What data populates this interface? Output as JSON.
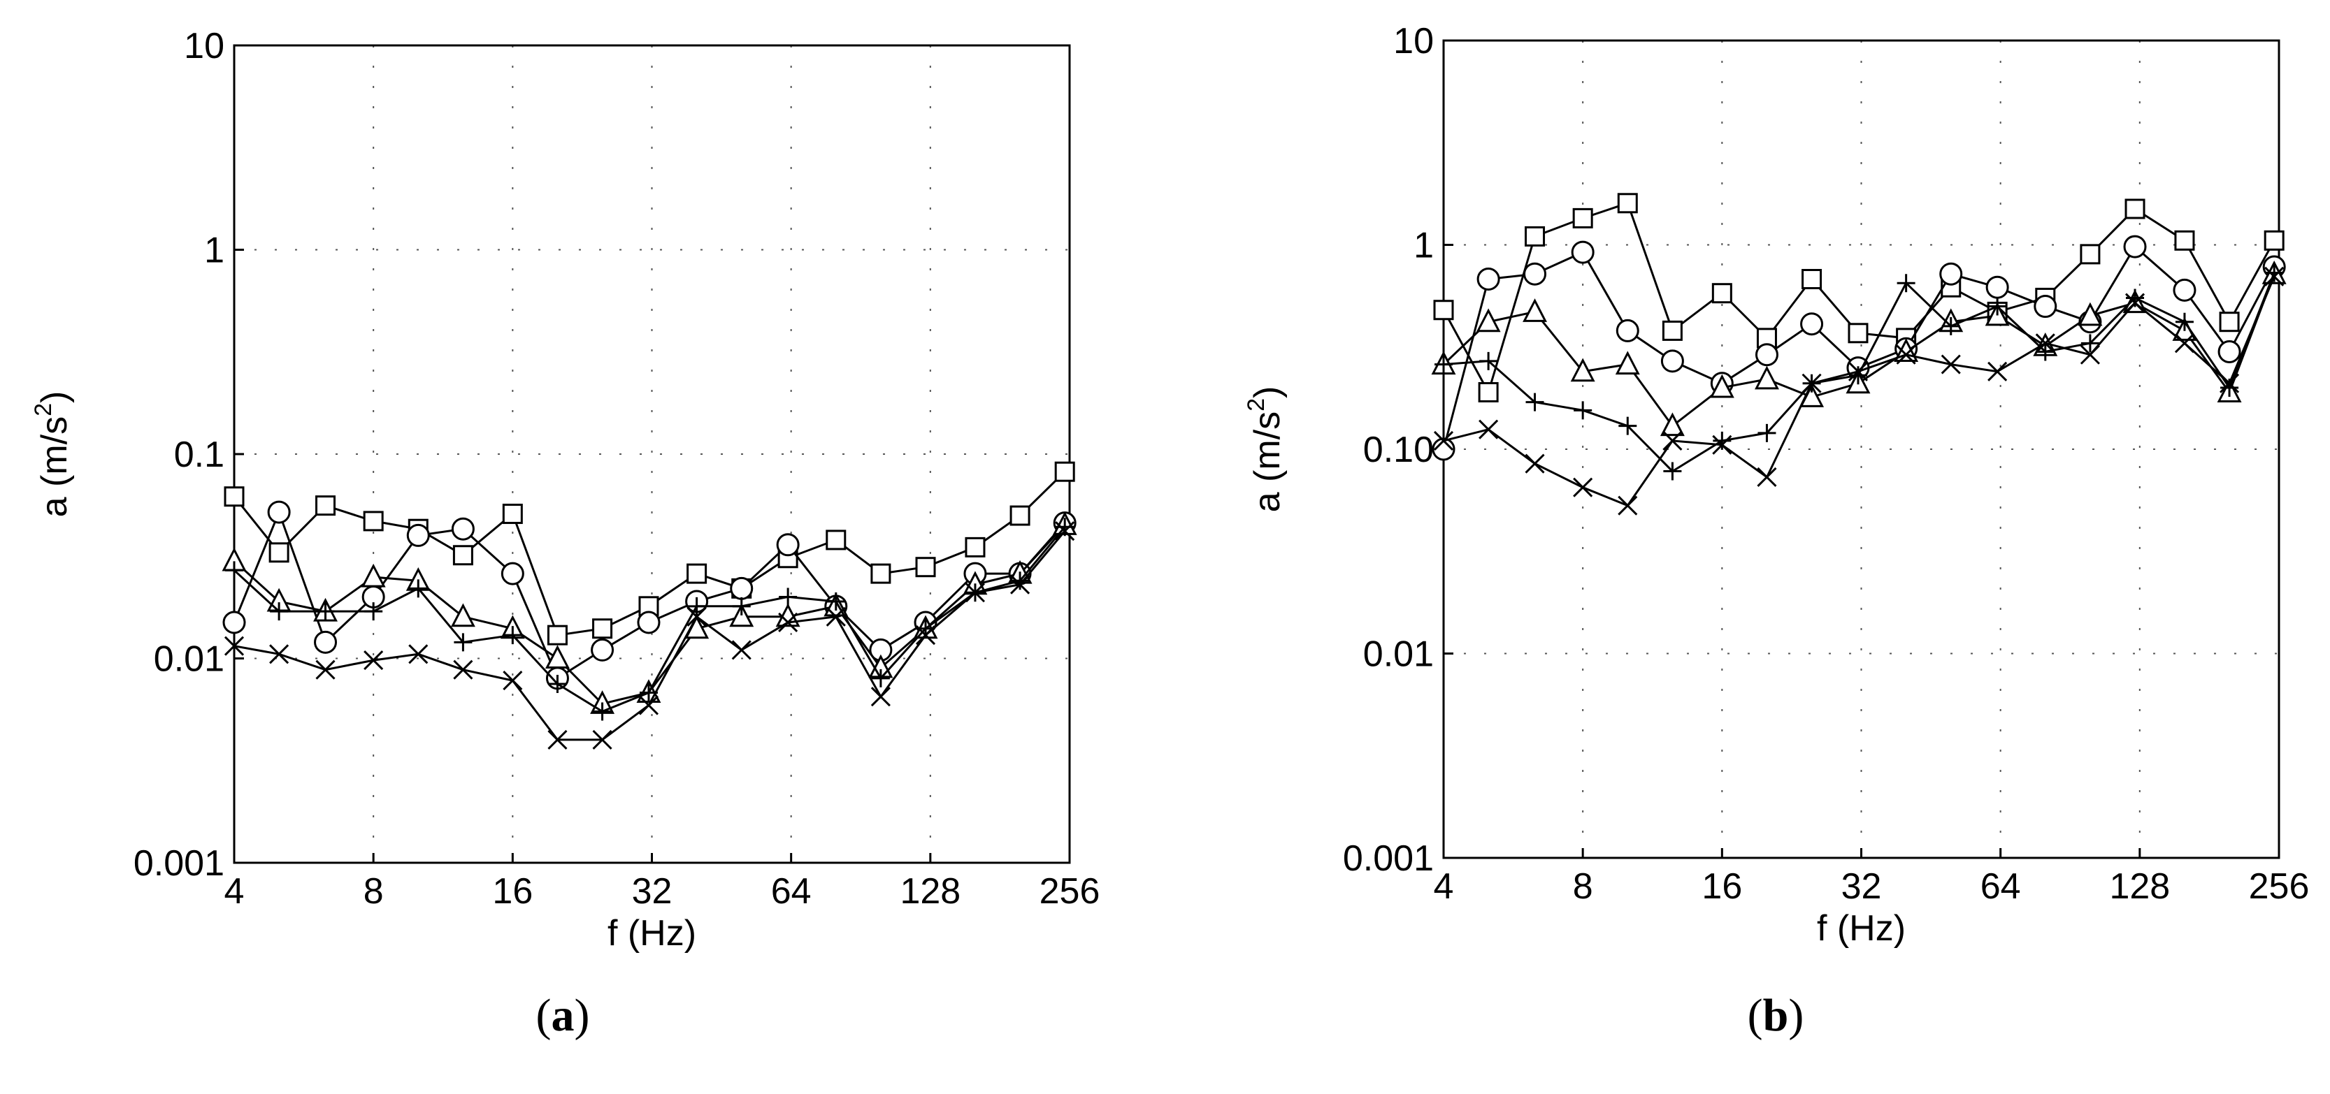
{
  "chart_data": [
    {
      "type": "line",
      "panel_label": "a",
      "xlabel": "f (Hz)",
      "ylabel_main": "a (m/s",
      "ylabel_sup": "2",
      "ylabel_close": ")",
      "xscale": "log2",
      "yscale": "log10",
      "xlim": [
        4,
        256
      ],
      "ylim": [
        0.001,
        10
      ],
      "x_ticks": [
        "4",
        "8",
        "16",
        "32",
        "64",
        "128",
        "256"
      ],
      "y_ticks": [
        "0.001",
        "0.01",
        "0.1",
        "1",
        "10"
      ],
      "grid": "dotted",
      "series": [
        {
          "name": "square",
          "marker": "square",
          "x": [
            4,
            5,
            6.3,
            8,
            10,
            12.5,
            16,
            20,
            25,
            31.5,
            40,
            50,
            63,
            80,
            100,
            125,
            160,
            200,
            250
          ],
          "y": [
            0.062,
            0.033,
            0.056,
            0.047,
            0.043,
            0.032,
            0.051,
            0.013,
            0.014,
            0.018,
            0.026,
            0.022,
            0.031,
            0.038,
            0.026,
            0.028,
            0.035,
            0.05,
            0.082
          ]
        },
        {
          "name": "circle",
          "marker": "circle",
          "x": [
            4,
            5,
            6.3,
            8,
            10,
            12.5,
            16,
            20,
            25,
            31.5,
            40,
            50,
            63,
            80,
            100,
            125,
            160,
            200,
            250
          ],
          "y": [
            0.015,
            0.052,
            0.012,
            0.02,
            0.04,
            0.043,
            0.026,
            0.008,
            0.011,
            0.015,
            0.019,
            0.022,
            0.036,
            0.018,
            0.011,
            0.015,
            0.026,
            0.026,
            0.046
          ]
        },
        {
          "name": "triangle",
          "marker": "triangle",
          "x": [
            4,
            5,
            6.3,
            8,
            10,
            12.5,
            16,
            20,
            25,
            31.5,
            40,
            50,
            63,
            80,
            100,
            125,
            160,
            200,
            250
          ],
          "y": [
            0.03,
            0.019,
            0.017,
            0.025,
            0.024,
            0.016,
            0.014,
            0.01,
            0.006,
            0.0068,
            0.014,
            0.016,
            0.016,
            0.018,
            0.009,
            0.014,
            0.023,
            0.026,
            0.045
          ]
        },
        {
          "name": "plus",
          "marker": "plus",
          "x": [
            4,
            5,
            6.3,
            8,
            10,
            12.5,
            16,
            20,
            25,
            31.5,
            40,
            50,
            63,
            80,
            100,
            125,
            160,
            200,
            250
          ],
          "y": [
            0.027,
            0.017,
            0.017,
            0.017,
            0.022,
            0.012,
            0.013,
            0.0075,
            0.0055,
            0.0068,
            0.018,
            0.018,
            0.02,
            0.019,
            0.008,
            0.014,
            0.021,
            0.024,
            0.044
          ]
        },
        {
          "name": "cross",
          "marker": "cross",
          "x": [
            4,
            5,
            6.3,
            8,
            10,
            12.5,
            16,
            20,
            25,
            31.5,
            40,
            50,
            63,
            80,
            100,
            125,
            160,
            200,
            250
          ],
          "y": [
            0.0115,
            0.0105,
            0.0088,
            0.0098,
            0.0105,
            0.0088,
            0.0078,
            0.004,
            0.004,
            0.0059,
            0.016,
            0.011,
            0.015,
            0.016,
            0.0065,
            0.013,
            0.021,
            0.023,
            0.042
          ]
        }
      ]
    },
    {
      "type": "line",
      "panel_label": "b",
      "xlabel": "f (Hz)",
      "ylabel_main": "a (m/s",
      "ylabel_sup": "2",
      "ylabel_close": ")",
      "xscale": "log2",
      "yscale": "log10",
      "xlim": [
        4,
        256
      ],
      "ylim": [
        0.001,
        10
      ],
      "x_ticks": [
        "4",
        "8",
        "16",
        "32",
        "64",
        "128",
        "256"
      ],
      "y_ticks": [
        "0.001",
        "0.01",
        "0.10",
        "1",
        "10"
      ],
      "grid": "dotted",
      "series": [
        {
          "name": "square",
          "marker": "square",
          "x": [
            4,
            5,
            6.3,
            8,
            10,
            12.5,
            16,
            20,
            25,
            31.5,
            40,
            50,
            63,
            80,
            100,
            125,
            160,
            200,
            250
          ],
          "y": [
            0.48,
            0.19,
            1.1,
            1.35,
            1.6,
            0.38,
            0.58,
            0.35,
            0.68,
            0.37,
            0.35,
            0.62,
            0.47,
            0.55,
            0.9,
            1.5,
            1.05,
            0.42,
            1.05
          ]
        },
        {
          "name": "circle",
          "marker": "circle",
          "x": [
            4,
            5,
            6.3,
            8,
            10,
            12.5,
            16,
            20,
            25,
            31.5,
            40,
            50,
            63,
            80,
            100,
            125,
            160,
            200,
            250
          ],
          "y": [
            0.1,
            0.68,
            0.72,
            0.92,
            0.38,
            0.27,
            0.21,
            0.29,
            0.41,
            0.25,
            0.31,
            0.72,
            0.62,
            0.5,
            0.42,
            0.98,
            0.6,
            0.3,
            0.78
          ]
        },
        {
          "name": "triangle",
          "marker": "triangle",
          "x": [
            4,
            5,
            6.3,
            8,
            10,
            12.5,
            16,
            20,
            25,
            31.5,
            40,
            50,
            63,
            80,
            100,
            125,
            160,
            200,
            250
          ],
          "y": [
            0.26,
            0.42,
            0.47,
            0.24,
            0.26,
            0.13,
            0.2,
            0.22,
            0.18,
            0.21,
            0.3,
            0.42,
            0.45,
            0.32,
            0.45,
            0.52,
            0.38,
            0.19,
            0.72
          ]
        },
        {
          "name": "plus",
          "marker": "plus",
          "x": [
            4,
            5,
            6.3,
            8,
            10,
            12.5,
            16,
            20,
            25,
            31.5,
            40,
            50,
            63,
            80,
            100,
            125,
            160,
            200,
            250
          ],
          "y": [
            0.26,
            0.27,
            0.17,
            0.155,
            0.13,
            0.078,
            0.11,
            0.12,
            0.21,
            0.23,
            0.65,
            0.4,
            0.5,
            0.3,
            0.33,
            0.55,
            0.42,
            0.2,
            0.73
          ]
        },
        {
          "name": "cross",
          "marker": "cross",
          "x": [
            4,
            5,
            6.3,
            8,
            10,
            12.5,
            16,
            20,
            25,
            31.5,
            40,
            50,
            63,
            80,
            100,
            125,
            160,
            200,
            250
          ],
          "y": [
            0.11,
            0.125,
            0.085,
            0.065,
            0.053,
            0.11,
            0.105,
            0.073,
            0.21,
            0.24,
            0.29,
            0.26,
            0.24,
            0.33,
            0.29,
            0.52,
            0.33,
            0.21,
            0.7
          ]
        }
      ]
    }
  ]
}
